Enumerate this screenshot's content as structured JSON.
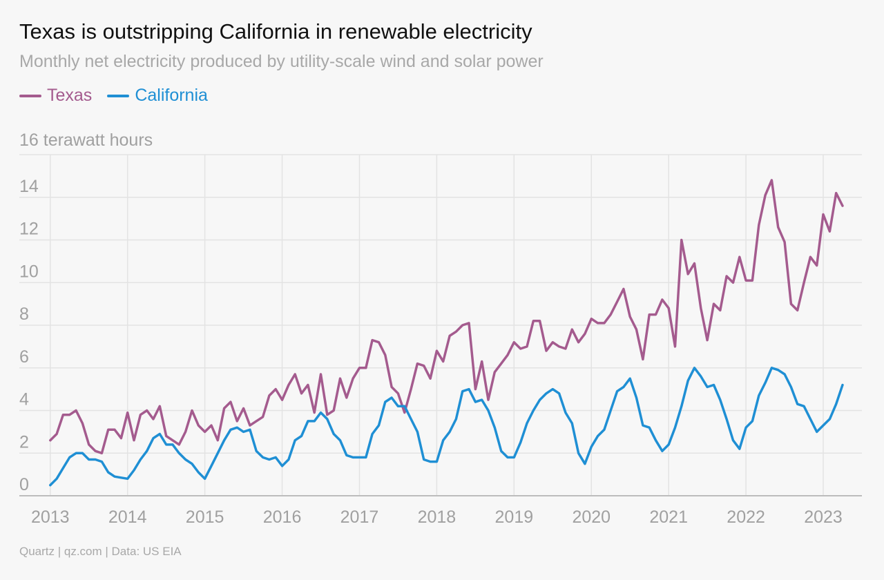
{
  "colors": {
    "texas": "#a45b8e",
    "california": "#1f8fd4",
    "grid": "#e3e3e3",
    "axis": "#bcbcbc",
    "tick": "#a0a0a0"
  },
  "chart_data": {
    "type": "line",
    "title": "Texas is outstripping California in renewable electricity",
    "subtitle": "Monthly net electricity produced by utility-scale wind and solar power",
    "ylabel": "16 terawatt hours",
    "source": "Quartz | qz.com | Data: US EIA",
    "ylim": [
      0,
      16
    ],
    "yticks": [
      0,
      2,
      4,
      6,
      8,
      10,
      12,
      14
    ],
    "xlim": [
      2012.6,
      2023.5
    ],
    "xticks": [
      2013,
      2014,
      2015,
      2016,
      2017,
      2018,
      2019,
      2020,
      2021,
      2022,
      2023
    ],
    "grid": true,
    "legend": "top-left",
    "series": [
      {
        "name": "Texas",
        "color": "#a45b8e",
        "values": [
          2.6,
          2.9,
          3.8,
          3.8,
          4.0,
          3.4,
          2.4,
          2.1,
          2.0,
          3.1,
          3.1,
          2.7,
          3.9,
          2.6,
          3.8,
          4.0,
          3.6,
          4.2,
          2.8,
          2.6,
          2.4,
          3.0,
          4.0,
          3.3,
          3.0,
          3.3,
          2.6,
          4.1,
          4.4,
          3.5,
          4.1,
          3.3,
          3.5,
          3.7,
          4.7,
          5.0,
          4.5,
          5.2,
          5.7,
          4.8,
          5.2,
          3.9,
          5.7,
          3.8,
          4.0,
          5.5,
          4.6,
          5.5,
          6.0,
          6.0,
          7.3,
          7.2,
          6.6,
          5.1,
          4.8,
          3.9,
          5.0,
          6.2,
          6.1,
          5.5,
          6.8,
          6.3,
          7.5,
          7.7,
          8.0,
          8.1,
          5.0,
          6.3,
          4.5,
          5.8,
          6.2,
          6.6,
          7.2,
          6.9,
          7.0,
          8.2,
          8.2,
          6.8,
          7.2,
          7.0,
          6.9,
          7.8,
          7.2,
          7.6,
          8.3,
          8.1,
          8.1,
          8.5,
          9.1,
          9.7,
          8.4,
          7.8,
          6.4,
          8.5,
          8.5,
          9.2,
          8.8,
          7.0,
          12.0,
          10.4,
          10.9,
          8.8,
          7.3,
          9.0,
          8.7,
          10.3,
          10.0,
          11.2,
          10.1,
          10.1,
          12.7,
          14.1,
          14.8,
          12.6,
          11.9,
          9.0,
          8.7,
          10.0,
          11.2,
          10.8,
          13.2,
          12.4,
          14.2,
          13.6
        ]
      },
      {
        "name": "California",
        "color": "#1f8fd4",
        "values": [
          0.5,
          0.8,
          1.3,
          1.8,
          2.0,
          2.0,
          1.7,
          1.7,
          1.6,
          1.1,
          0.9,
          0.85,
          0.8,
          1.2,
          1.7,
          2.1,
          2.7,
          2.9,
          2.4,
          2.4,
          2.0,
          1.7,
          1.5,
          1.1,
          0.8,
          1.4,
          2.0,
          2.6,
          3.1,
          3.2,
          3.0,
          3.1,
          2.1,
          1.8,
          1.7,
          1.8,
          1.4,
          1.7,
          2.6,
          2.8,
          3.5,
          3.5,
          3.9,
          3.6,
          2.9,
          2.6,
          1.9,
          1.8,
          1.8,
          1.8,
          2.9,
          3.3,
          4.4,
          4.6,
          4.2,
          4.2,
          3.6,
          3.0,
          1.7,
          1.6,
          1.6,
          2.6,
          3.0,
          3.6,
          4.9,
          5.0,
          4.4,
          4.5,
          4.0,
          3.2,
          2.1,
          1.8,
          1.8,
          2.5,
          3.4,
          4.0,
          4.5,
          4.8,
          5.0,
          4.8,
          3.9,
          3.4,
          2.0,
          1.5,
          2.3,
          2.8,
          3.1,
          4.0,
          4.9,
          5.1,
          5.5,
          4.6,
          3.3,
          3.2,
          2.6,
          2.1,
          2.4,
          3.2,
          4.2,
          5.4,
          6.0,
          5.6,
          5.1,
          5.2,
          4.5,
          3.6,
          2.6,
          2.2,
          3.2,
          3.5,
          4.7,
          5.3,
          6.0,
          5.9,
          5.7,
          5.1,
          4.3,
          4.2,
          3.6,
          3.0,
          3.3,
          3.6,
          4.3,
          5.2
        ]
      }
    ]
  }
}
